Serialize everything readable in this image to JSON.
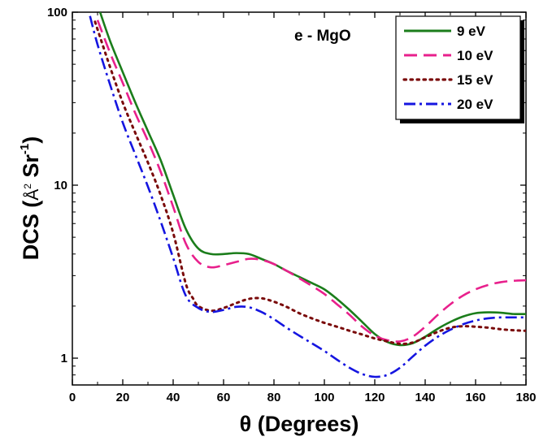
{
  "chart_data": {
    "type": "line",
    "title": "",
    "annotation": "e - MgO",
    "xlabel": "θ (Degrees)",
    "ylabel": {
      "prefix": "DCS (",
      "unit_a": "Å",
      "unit_a_exp": "2",
      "unit_b": " Sr",
      "unit_b_exp": "-1",
      "suffix": ")"
    },
    "x_ticks": [
      0,
      20,
      40,
      60,
      80,
      100,
      120,
      140,
      160,
      180
    ],
    "y_ticks": [
      {
        "value": 1,
        "label": "1"
      },
      {
        "value": 10,
        "label": "10"
      },
      {
        "value": 100,
        "label": "100"
      }
    ],
    "xlim": [
      0,
      180
    ],
    "ylim": [
      0.7,
      100
    ],
    "yscale": "log",
    "grid": false,
    "legend_position": "top-right",
    "series": [
      {
        "name": "9 eV",
        "color": "#1b7d1b",
        "style": "solid",
        "points": [
          [
            11,
            100
          ],
          [
            15,
            68
          ],
          [
            20,
            45
          ],
          [
            25,
            30
          ],
          [
            30,
            20.5
          ],
          [
            35,
            14
          ],
          [
            40,
            8.8
          ],
          [
            45,
            5.6
          ],
          [
            50,
            4.3
          ],
          [
            55,
            4.0
          ],
          [
            60,
            4.0
          ],
          [
            65,
            4.05
          ],
          [
            70,
            4.0
          ],
          [
            75,
            3.75
          ],
          [
            80,
            3.5
          ],
          [
            85,
            3.2
          ],
          [
            90,
            2.95
          ],
          [
            95,
            2.72
          ],
          [
            100,
            2.5
          ],
          [
            105,
            2.2
          ],
          [
            110,
            1.9
          ],
          [
            115,
            1.62
          ],
          [
            120,
            1.38
          ],
          [
            125,
            1.24
          ],
          [
            130,
            1.19
          ],
          [
            135,
            1.22
          ],
          [
            140,
            1.33
          ],
          [
            145,
            1.48
          ],
          [
            150,
            1.62
          ],
          [
            155,
            1.74
          ],
          [
            160,
            1.82
          ],
          [
            165,
            1.84
          ],
          [
            170,
            1.83
          ],
          [
            175,
            1.8
          ],
          [
            180,
            1.8
          ]
        ]
      },
      {
        "name": "10 eV",
        "color": "#e8208c",
        "style": "dash",
        "points": [
          [
            10,
            90
          ],
          [
            15,
            58
          ],
          [
            20,
            39
          ],
          [
            25,
            26
          ],
          [
            30,
            18
          ],
          [
            35,
            12
          ],
          [
            40,
            7.5
          ],
          [
            45,
            4.6
          ],
          [
            50,
            3.6
          ],
          [
            55,
            3.35
          ],
          [
            60,
            3.45
          ],
          [
            65,
            3.6
          ],
          [
            70,
            3.75
          ],
          [
            75,
            3.7
          ],
          [
            80,
            3.5
          ],
          [
            85,
            3.2
          ],
          [
            90,
            2.9
          ],
          [
            95,
            2.62
          ],
          [
            100,
            2.35
          ],
          [
            105,
            2.05
          ],
          [
            110,
            1.78
          ],
          [
            115,
            1.52
          ],
          [
            120,
            1.35
          ],
          [
            125,
            1.27
          ],
          [
            130,
            1.25
          ],
          [
            135,
            1.33
          ],
          [
            140,
            1.52
          ],
          [
            145,
            1.78
          ],
          [
            150,
            2.05
          ],
          [
            155,
            2.3
          ],
          [
            160,
            2.5
          ],
          [
            165,
            2.65
          ],
          [
            170,
            2.75
          ],
          [
            175,
            2.8
          ],
          [
            180,
            2.82
          ]
        ]
      },
      {
        "name": "15 eV",
        "color": "#7a0a0a",
        "style": "dot",
        "points": [
          [
            9,
            88
          ],
          [
            15,
            48
          ],
          [
            20,
            30
          ],
          [
            25,
            20
          ],
          [
            30,
            13.5
          ],
          [
            35,
            8.8
          ],
          [
            40,
            5.3
          ],
          [
            45,
            2.7
          ],
          [
            48,
            2.2
          ],
          [
            50,
            2.0
          ],
          [
            55,
            1.88
          ],
          [
            60,
            1.95
          ],
          [
            65,
            2.08
          ],
          [
            70,
            2.2
          ],
          [
            75,
            2.22
          ],
          [
            80,
            2.12
          ],
          [
            85,
            1.98
          ],
          [
            90,
            1.82
          ],
          [
            95,
            1.7
          ],
          [
            100,
            1.6
          ],
          [
            105,
            1.52
          ],
          [
            110,
            1.44
          ],
          [
            115,
            1.37
          ],
          [
            120,
            1.3
          ],
          [
            125,
            1.25
          ],
          [
            130,
            1.21
          ],
          [
            135,
            1.23
          ],
          [
            140,
            1.32
          ],
          [
            145,
            1.42
          ],
          [
            150,
            1.5
          ],
          [
            155,
            1.53
          ],
          [
            160,
            1.52
          ],
          [
            165,
            1.5
          ],
          [
            170,
            1.47
          ],
          [
            175,
            1.45
          ],
          [
            180,
            1.44
          ]
        ]
      },
      {
        "name": "20 eV",
        "color": "#1515e0",
        "style": "dashdot",
        "points": [
          [
            7,
            95
          ],
          [
            10,
            65
          ],
          [
            15,
            38
          ],
          [
            20,
            23
          ],
          [
            25,
            15
          ],
          [
            30,
            9.8
          ],
          [
            35,
            6.2
          ],
          [
            40,
            3.8
          ],
          [
            45,
            2.3
          ],
          [
            50,
            1.95
          ],
          [
            55,
            1.85
          ],
          [
            60,
            1.9
          ],
          [
            65,
            1.98
          ],
          [
            70,
            1.97
          ],
          [
            75,
            1.85
          ],
          [
            80,
            1.68
          ],
          [
            85,
            1.5
          ],
          [
            90,
            1.35
          ],
          [
            95,
            1.22
          ],
          [
            100,
            1.1
          ],
          [
            105,
            0.98
          ],
          [
            110,
            0.88
          ],
          [
            115,
            0.81
          ],
          [
            120,
            0.78
          ],
          [
            125,
            0.8
          ],
          [
            130,
            0.88
          ],
          [
            135,
            1.02
          ],
          [
            140,
            1.18
          ],
          [
            145,
            1.33
          ],
          [
            150,
            1.46
          ],
          [
            155,
            1.57
          ],
          [
            160,
            1.65
          ],
          [
            165,
            1.7
          ],
          [
            170,
            1.72
          ],
          [
            175,
            1.72
          ],
          [
            180,
            1.72
          ]
        ]
      }
    ]
  }
}
